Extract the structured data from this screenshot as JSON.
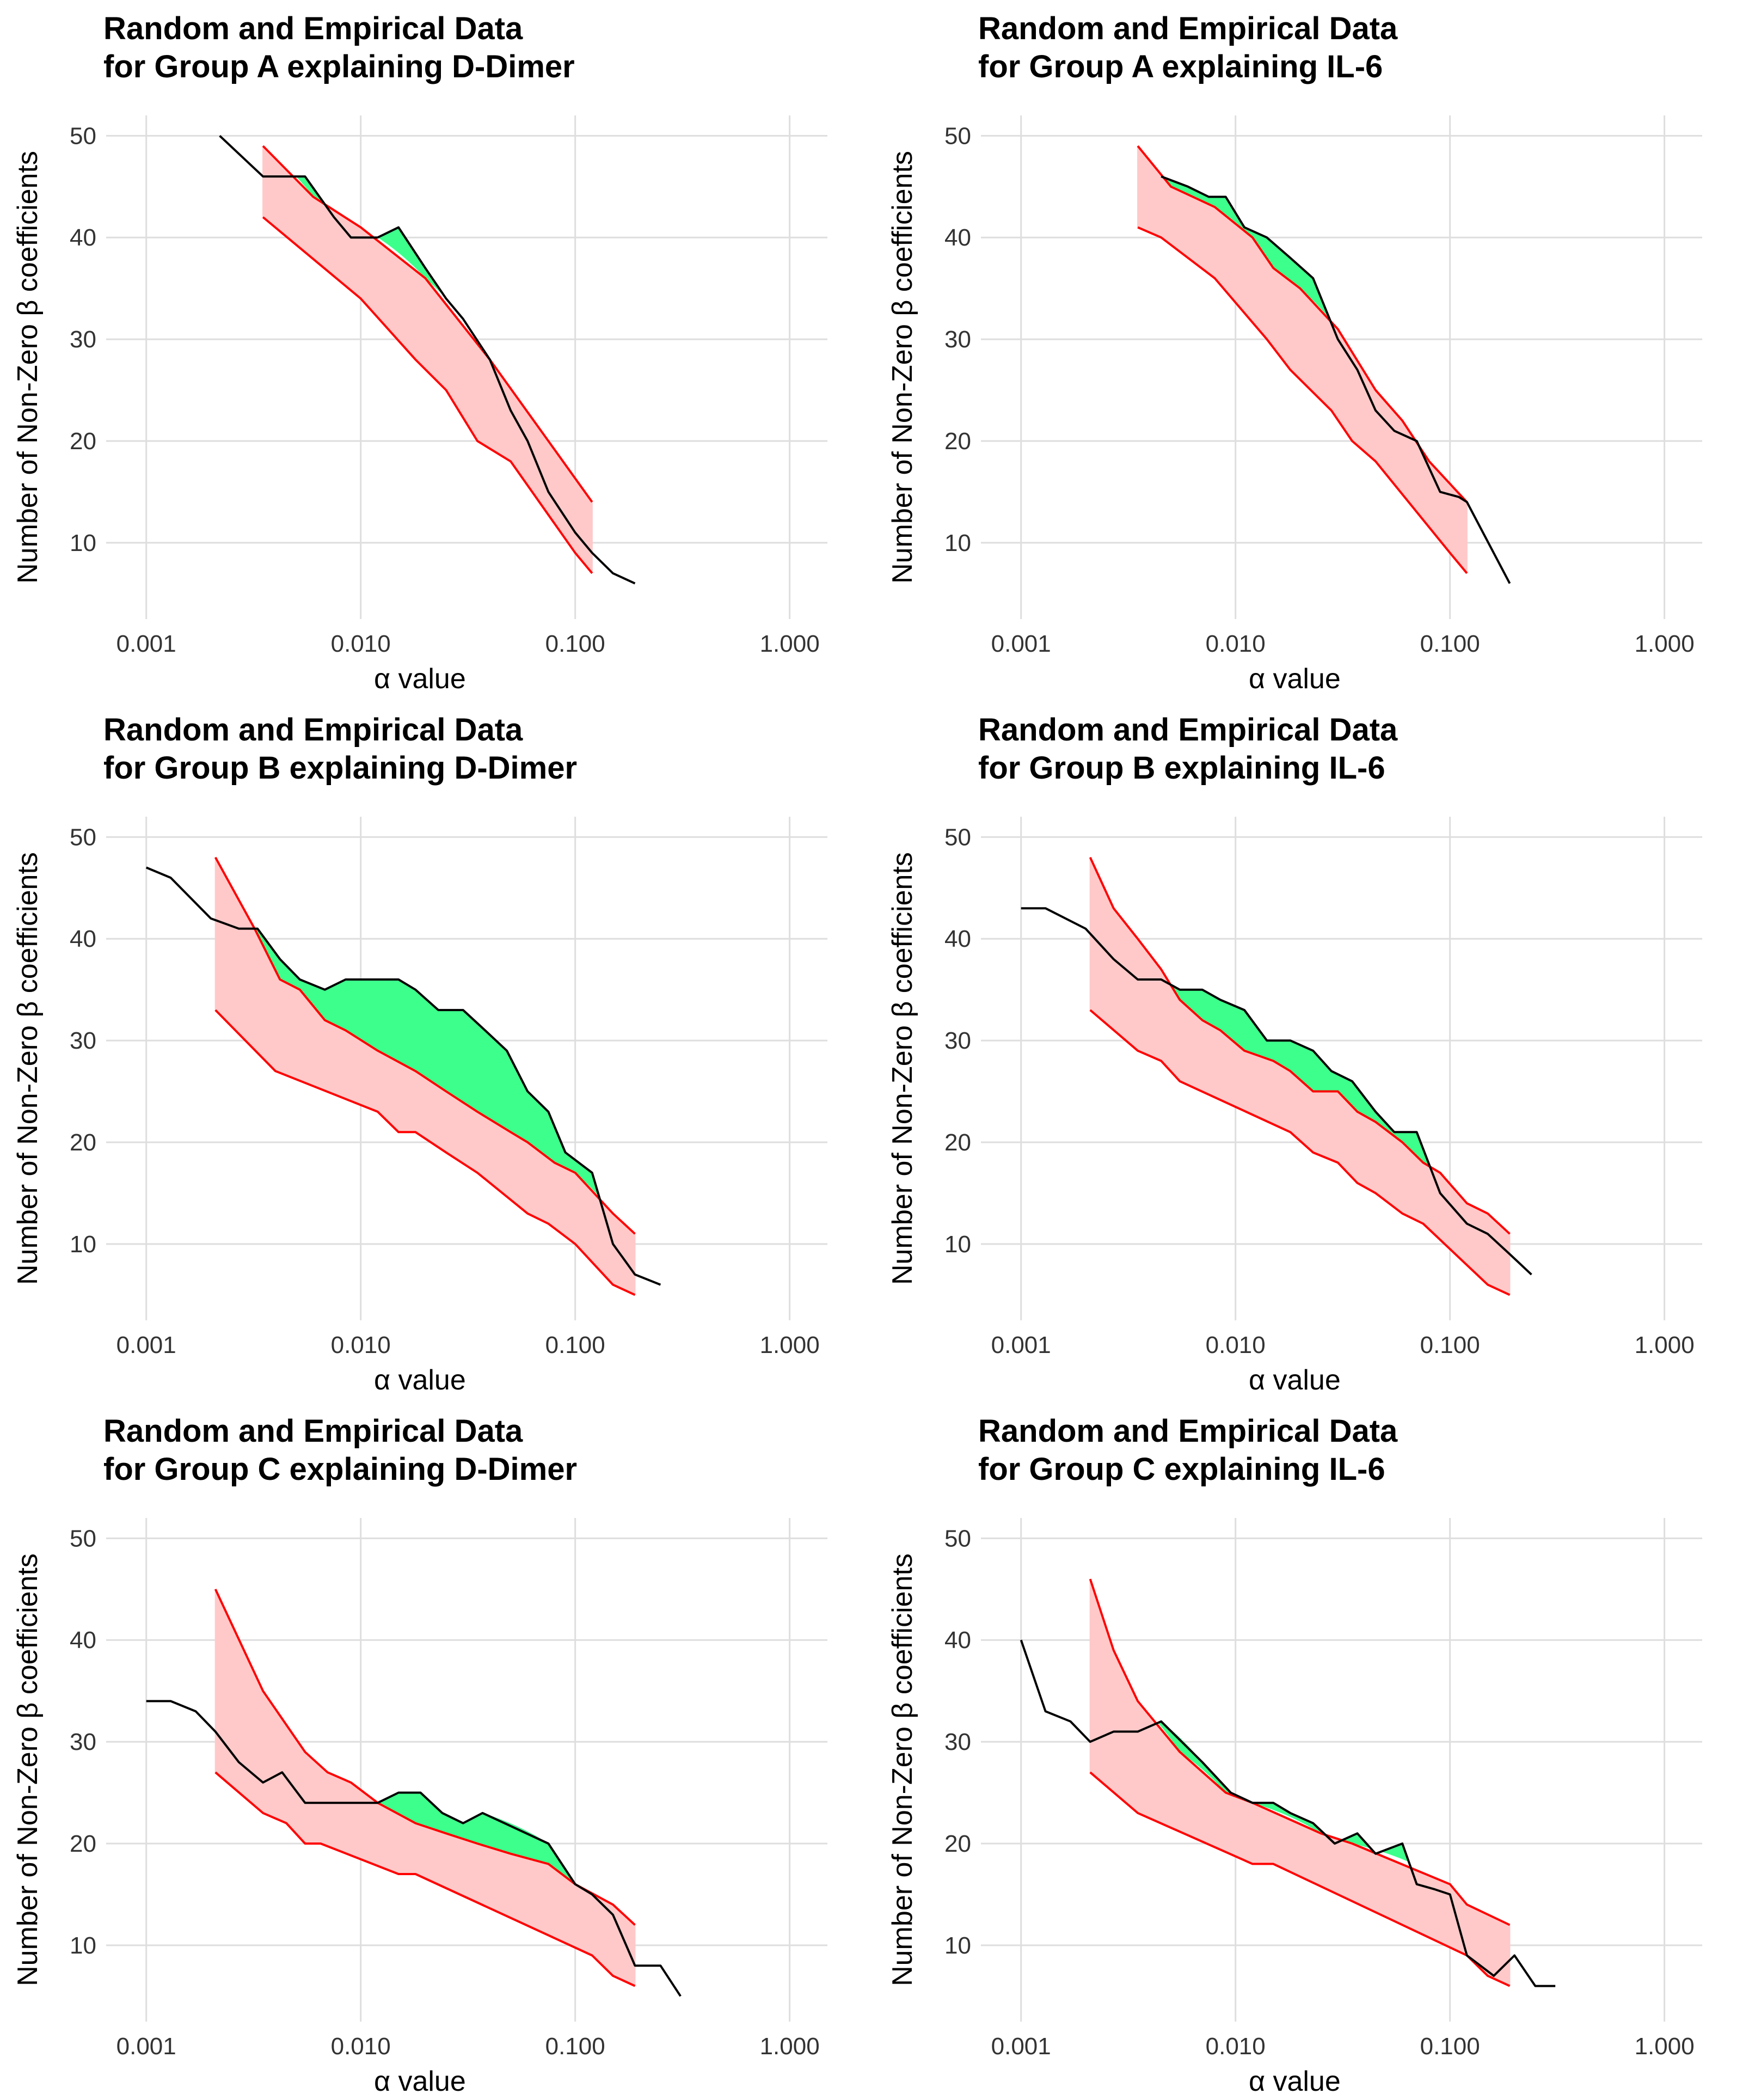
{
  "colors": {
    "band_fill": "#ffc9c9",
    "band_edge": "#ff0000",
    "excess_fill": "#3dff8c",
    "empirical_line": "#000000",
    "grid": "#dedede"
  },
  "chart_data": [
    {
      "type": "line",
      "title": [
        "Random and Empirical Data",
        "for Group A explaining D-Dimer"
      ],
      "xlabel": "α value",
      "ylabel": "Number of Non-Zero β coefficients",
      "xscale": "log10",
      "xlim": [
        0.00065,
        1.5
      ],
      "ylim": [
        2.5,
        52
      ],
      "xticks": [
        0.001,
        0.01,
        0.1,
        1
      ],
      "xtick_labels": [
        "0.001",
        "0.010",
        "0.100",
        "1.000"
      ],
      "yticks": [
        10,
        20,
        30,
        40,
        50
      ],
      "ytick_labels": [
        "10",
        "20",
        "30",
        "40",
        "50"
      ],
      "grid": true,
      "series": [
        {
          "name": "random_upper",
          "x": [
            0.0035,
            0.006,
            0.01,
            0.02,
            0.04,
            0.075,
            0.12
          ],
          "y": [
            49,
            44,
            41,
            36,
            28,
            20,
            14
          ]
        },
        {
          "name": "random_lower",
          "x": [
            0.0035,
            0.01,
            0.018,
            0.025,
            0.035,
            0.05,
            0.1,
            0.12
          ],
          "y": [
            42,
            34,
            28,
            25,
            20,
            18,
            9,
            7
          ]
        },
        {
          "name": "empirical",
          "x": [
            0.0022,
            0.0035,
            0.0055,
            0.0075,
            0.009,
            0.012,
            0.015,
            0.02,
            0.025,
            0.03,
            0.04,
            0.05,
            0.06,
            0.075,
            0.1,
            0.12,
            0.15,
            0.19
          ],
          "y": [
            50,
            46,
            46,
            42,
            40,
            40,
            41,
            37,
            34,
            32,
            28,
            23,
            20,
            15,
            11,
            9,
            7,
            6
          ]
        }
      ]
    },
    {
      "type": "line",
      "title": [
        "Random and Empirical Data",
        "for Group A explaining IL-6"
      ],
      "xlabel": "α value",
      "ylabel": "Number of Non-Zero β coefficients",
      "xscale": "log10",
      "xlim": [
        0.00065,
        1.5
      ],
      "ylim": [
        2.5,
        52
      ],
      "xticks": [
        0.001,
        0.01,
        0.1,
        1
      ],
      "xtick_labels": [
        "0.001",
        "0.010",
        "0.100",
        "1.000"
      ],
      "yticks": [
        10,
        20,
        30,
        40,
        50
      ],
      "ytick_labels": [
        "10",
        "20",
        "30",
        "40",
        "50"
      ],
      "grid": true,
      "series": [
        {
          "name": "random_upper",
          "x": [
            0.0035,
            0.005,
            0.008,
            0.012,
            0.015,
            0.02,
            0.03,
            0.045,
            0.06,
            0.08,
            0.12
          ],
          "y": [
            49,
            45,
            43,
            40,
            37,
            35,
            31,
            25,
            22,
            18,
            14
          ]
        },
        {
          "name": "random_lower",
          "x": [
            0.0035,
            0.0045,
            0.008,
            0.014,
            0.018,
            0.028,
            0.035,
            0.045,
            0.1,
            0.12
          ],
          "y": [
            41,
            40,
            36,
            30,
            27,
            23,
            20,
            18,
            9,
            7
          ]
        },
        {
          "name": "empirical",
          "x": [
            0.0045,
            0.006,
            0.0075,
            0.009,
            0.011,
            0.014,
            0.018,
            0.023,
            0.03,
            0.037,
            0.045,
            0.055,
            0.07,
            0.09,
            0.11,
            0.12,
            0.19
          ],
          "y": [
            46,
            45,
            44,
            44,
            41,
            40,
            38,
            36,
            30,
            27,
            23,
            21,
            20,
            15,
            14.5,
            14,
            6
          ]
        }
      ]
    },
    {
      "type": "line",
      "title": [
        "Random and Empirical Data",
        "for Group B explaining D-Dimer"
      ],
      "xlabel": "α value",
      "ylabel": "Number of Non-Zero β coefficients",
      "xscale": "log10",
      "xlim": [
        0.00065,
        1.5
      ],
      "ylim": [
        2.5,
        52
      ],
      "xticks": [
        0.001,
        0.01,
        0.1,
        1
      ],
      "xtick_labels": [
        "0.001",
        "0.010",
        "0.100",
        "1.000"
      ],
      "yticks": [
        10,
        20,
        30,
        40,
        50
      ],
      "ytick_labels": [
        "10",
        "20",
        "30",
        "40",
        "50"
      ],
      "grid": true,
      "series": [
        {
          "name": "random_upper",
          "x": [
            0.0021,
            0.0032,
            0.0042,
            0.0052,
            0.0068,
            0.0085,
            0.012,
            0.018,
            0.025,
            0.035,
            0.05,
            0.06,
            0.08,
            0.1,
            0.15,
            0.19
          ],
          "y": [
            48,
            41,
            36,
            35,
            32,
            31,
            29,
            27,
            25,
            23,
            21,
            20,
            18,
            17,
            13,
            11
          ]
        },
        {
          "name": "random_lower",
          "x": [
            0.0021,
            0.004,
            0.012,
            0.015,
            0.018,
            0.025,
            0.035,
            0.06,
            0.075,
            0.1,
            0.15,
            0.19
          ],
          "y": [
            33,
            27,
            23,
            21,
            21,
            19,
            17,
            13,
            12,
            10,
            6,
            5
          ]
        },
        {
          "name": "empirical",
          "x": [
            0.001,
            0.0013,
            0.002,
            0.0027,
            0.0033,
            0.0042,
            0.0052,
            0.0068,
            0.0085,
            0.012,
            0.015,
            0.018,
            0.023,
            0.03,
            0.038,
            0.048,
            0.06,
            0.075,
            0.09,
            0.12,
            0.15,
            0.19,
            0.25
          ],
          "y": [
            47,
            46,
            42,
            41,
            41,
            38,
            36,
            35,
            36,
            36,
            36,
            35,
            33,
            33,
            31,
            29,
            25,
            23,
            19,
            17,
            10,
            7,
            6
          ]
        }
      ]
    },
    {
      "type": "line",
      "title": [
        "Random and Empirical Data",
        "for Group B explaining IL-6"
      ],
      "xlabel": "α value",
      "ylabel": "Number of Non-Zero β coefficients",
      "xscale": "log10",
      "xlim": [
        0.00065,
        1.5
      ],
      "ylim": [
        2.5,
        52
      ],
      "xticks": [
        0.001,
        0.01,
        0.1,
        1
      ],
      "xtick_labels": [
        "0.001",
        "0.010",
        "0.100",
        "1.000"
      ],
      "yticks": [
        10,
        20,
        30,
        40,
        50
      ],
      "ytick_labels": [
        "10",
        "20",
        "30",
        "40",
        "50"
      ],
      "grid": true,
      "series": [
        {
          "name": "random_upper",
          "x": [
            0.0021,
            0.0027,
            0.0035,
            0.0045,
            0.0055,
            0.007,
            0.0085,
            0.011,
            0.015,
            0.018,
            0.023,
            0.03,
            0.037,
            0.045,
            0.06,
            0.075,
            0.09,
            0.12,
            0.15,
            0.19
          ],
          "y": [
            48,
            43,
            40,
            37,
            34,
            32,
            31,
            29,
            28,
            27,
            25,
            25,
            23,
            22,
            20,
            18,
            17,
            14,
            13,
            11
          ]
        },
        {
          "name": "random_lower",
          "x": [
            0.0021,
            0.0035,
            0.0045,
            0.0055,
            0.018,
            0.023,
            0.03,
            0.037,
            0.045,
            0.06,
            0.075,
            0.15,
            0.19
          ],
          "y": [
            33,
            29,
            28,
            26,
            21,
            19,
            18,
            16,
            15,
            13,
            12,
            6,
            5
          ]
        },
        {
          "name": "empirical",
          "x": [
            0.001,
            0.0013,
            0.002,
            0.0027,
            0.0035,
            0.0045,
            0.0055,
            0.007,
            0.0085,
            0.011,
            0.014,
            0.018,
            0.023,
            0.028,
            0.035,
            0.045,
            0.055,
            0.07,
            0.09,
            0.12,
            0.15,
            0.19,
            0.24
          ],
          "y": [
            43,
            43,
            41,
            38,
            36,
            36,
            35,
            35,
            34,
            33,
            30,
            30,
            29,
            27,
            26,
            23,
            21,
            21,
            15,
            12,
            11,
            9,
            7
          ]
        }
      ]
    },
    {
      "type": "line",
      "title": [
        "Random and Empirical Data",
        "for Group C explaining D-Dimer"
      ],
      "xlabel": "α value",
      "ylabel": "Number of Non-Zero β coefficients",
      "xscale": "log10",
      "xlim": [
        0.00065,
        1.5
      ],
      "ylim": [
        2.5,
        52
      ],
      "xticks": [
        0.001,
        0.01,
        0.1,
        1
      ],
      "xtick_labels": [
        "0.001",
        "0.010",
        "0.100",
        "1.000"
      ],
      "yticks": [
        10,
        20,
        30,
        40,
        50
      ],
      "ytick_labels": [
        "10",
        "20",
        "30",
        "40",
        "50"
      ],
      "grid": true,
      "series": [
        {
          "name": "random_upper",
          "x": [
            0.0021,
            0.0035,
            0.0055,
            0.007,
            0.009,
            0.012,
            0.018,
            0.025,
            0.035,
            0.05,
            0.075,
            0.1,
            0.15,
            0.19
          ],
          "y": [
            45,
            35,
            29,
            27,
            26,
            24,
            22,
            21,
            20,
            19,
            18,
            16,
            14,
            12
          ]
        },
        {
          "name": "random_lower",
          "x": [
            0.0021,
            0.0035,
            0.0045,
            0.0055,
            0.0065,
            0.015,
            0.018,
            0.12,
            0.15,
            0.19
          ],
          "y": [
            27,
            23,
            22,
            20,
            20,
            17,
            17,
            9,
            7,
            6
          ]
        },
        {
          "name": "empirical",
          "x": [
            0.001,
            0.0013,
            0.0017,
            0.0021,
            0.0027,
            0.0035,
            0.0043,
            0.0055,
            0.007,
            0.009,
            0.012,
            0.015,
            0.019,
            0.024,
            0.03,
            0.037,
            0.075,
            0.1,
            0.12,
            0.15,
            0.19,
            0.25,
            0.31
          ],
          "y": [
            34,
            34,
            33,
            31,
            28,
            26,
            27,
            24,
            24,
            24,
            24,
            25,
            25,
            23,
            22,
            23,
            20,
            16,
            15,
            13,
            8,
            8,
            5
          ]
        }
      ]
    },
    {
      "type": "line",
      "title": [
        "Random and Empirical Data",
        "for Group C explaining IL-6"
      ],
      "xlabel": "α value",
      "ylabel": "Number of Non-Zero β coefficients",
      "xscale": "log10",
      "xlim": [
        0.00065,
        1.5
      ],
      "ylim": [
        2.5,
        52
      ],
      "xticks": [
        0.001,
        0.01,
        0.1,
        1
      ],
      "xtick_labels": [
        "0.001",
        "0.010",
        "0.100",
        "1.000"
      ],
      "yticks": [
        10,
        20,
        30,
        40,
        50
      ],
      "ytick_labels": [
        "10",
        "20",
        "30",
        "40",
        "50"
      ],
      "grid": true,
      "series": [
        {
          "name": "random_upper",
          "x": [
            0.0021,
            0.0027,
            0.0035,
            0.0055,
            0.009,
            0.012,
            0.025,
            0.035,
            0.1,
            0.12,
            0.19
          ],
          "y": [
            46,
            39,
            34,
            29,
            25,
            24,
            21,
            20,
            16,
            14,
            12
          ]
        },
        {
          "name": "random_lower",
          "x": [
            0.0021,
            0.0035,
            0.012,
            0.015,
            0.12,
            0.15,
            0.19
          ],
          "y": [
            27,
            23,
            18,
            18,
            9,
            7,
            6
          ]
        },
        {
          "name": "empirical",
          "x": [
            0.001,
            0.0013,
            0.0017,
            0.0021,
            0.0027,
            0.0035,
            0.0045,
            0.007,
            0.0095,
            0.012,
            0.015,
            0.018,
            0.023,
            0.029,
            0.037,
            0.045,
            0.06,
            0.07,
            0.085,
            0.1,
            0.12,
            0.16,
            0.2,
            0.25,
            0.31
          ],
          "y": [
            40,
            33,
            32,
            30,
            31,
            31,
            32,
            28,
            25,
            24,
            24,
            23,
            22,
            20,
            21,
            19,
            20,
            16,
            15.5,
            15,
            9,
            7,
            9,
            6,
            6
          ]
        }
      ]
    }
  ]
}
